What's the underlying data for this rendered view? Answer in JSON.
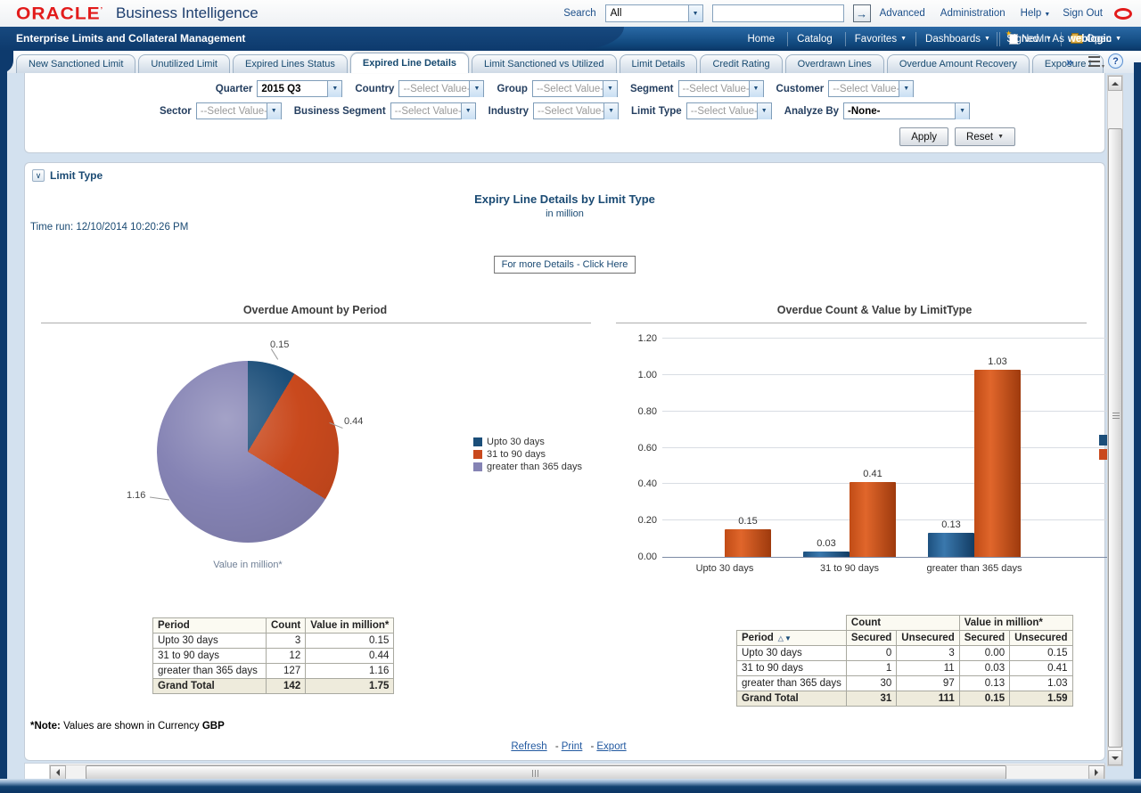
{
  "header": {
    "logo": "ORACLE",
    "logo_mark": "’",
    "product": "Business Intelligence",
    "search": {
      "label": "Search",
      "scope_value": "All",
      "input_value": ""
    },
    "links": [
      {
        "label": "Advanced"
      },
      {
        "label": "Administration"
      },
      {
        "label": "Help",
        "caret": "▼"
      },
      {
        "label": "Sign Out"
      }
    ]
  },
  "brandbar": {
    "dashboard_title": "Enterprise Limits and Collateral Management",
    "nav": [
      {
        "label": "Home"
      },
      {
        "label": "Catalog"
      },
      {
        "label": "Favorites",
        "caret": "▼"
      },
      {
        "label": "Dashboards",
        "caret": "▼"
      },
      {
        "label": "New",
        "caret": "▼",
        "icon_new": true
      },
      {
        "label": "Open",
        "caret": "▼",
        "icon_open": true
      }
    ],
    "signed_in_label": "Signed In As",
    "signed_in_user": "weblogic",
    "signed_in_caret": "▼"
  },
  "tabs": {
    "items": [
      {
        "label": "New Sanctioned Limit"
      },
      {
        "label": "Unutilized Limit"
      },
      {
        "label": "Expired Lines Status"
      },
      {
        "label": "Expired Line Details",
        "active": true
      },
      {
        "label": "Limit Sanctioned vs Utilized"
      },
      {
        "label": "Limit Details"
      },
      {
        "label": "Credit Rating"
      },
      {
        "label": "Overdrawn Lines"
      },
      {
        "label": "Overdue Amount Recovery"
      },
      {
        "label": "Exposure I"
      }
    ],
    "overflow_chevron": "»",
    "help_icon": "?"
  },
  "filters": {
    "row1": [
      {
        "label": "Quarter",
        "value": "2015 Q3"
      },
      {
        "label": "Country",
        "value": "--Select Value-",
        "muted": true
      },
      {
        "label": "Group",
        "value": "--Select Value-",
        "muted": true
      },
      {
        "label": "Segment",
        "value": "--Select Value-",
        "muted": true
      },
      {
        "label": "Customer",
        "value": "--Select Value-",
        "muted": true
      }
    ],
    "row2": [
      {
        "label": "Sector",
        "value": "--Select Value-",
        "muted": true
      },
      {
        "label": "Business Segment",
        "value": "--Select Value-",
        "muted": true
      },
      {
        "label": "Industry",
        "value": "--Select Value-",
        "muted": true
      },
      {
        "label": "Limit Type",
        "value": "--Select Value-",
        "muted": true
      },
      {
        "label": "Analyze By",
        "value": "-None-",
        "wide": true
      }
    ],
    "apply_label": "Apply",
    "reset_label": "Reset",
    "reset_caret": "▼"
  },
  "section": {
    "collapse_icon": "∨",
    "header": "Limit Type",
    "title": "Expiry Line Details by Limit Type",
    "subtitle": "in million",
    "time_run": "Time run: 12/10/2014 10:20:26 PM",
    "details_button": "For more Details - Click Here",
    "note_prefix": "*Note:",
    "note_text": " Values are shown in Currency ",
    "note_currency": "GBP",
    "footer_links": [
      {
        "label": "Refresh"
      },
      {
        "dash": "-",
        "label": "Print"
      },
      {
        "dash": "-",
        "label": "Export"
      }
    ]
  },
  "chart_data": [
    {
      "type": "pie",
      "title": "Overdue Amount by Period",
      "caption": "Value in million*",
      "labels": [
        "Upto 30 days",
        "31 to 90 days",
        "greater than 365 days"
      ],
      "values": [
        0.15,
        0.44,
        1.16
      ],
      "colors": [
        "#1b4e79",
        "#c9491d",
        "#8583b4"
      ],
      "legend_position": "right"
    },
    {
      "type": "bar",
      "title": "Overdue Count & Value by LimitType",
      "categories": [
        "Upto 30 days",
        "31 to 90 days",
        "greater than 365 days"
      ],
      "series": [
        {
          "name": "Secured",
          "color": "#1b4e79",
          "values": [
            0,
            0.03,
            0.13
          ]
        },
        {
          "name": "Unsecured",
          "color": "#c9491d",
          "values": [
            0.15,
            0.41,
            1.03
          ]
        }
      ],
      "ylim": [
        0,
        1.2
      ],
      "yticks": [
        0,
        0.2,
        0.4,
        0.6,
        0.8,
        1.0,
        1.2
      ],
      "grid": true,
      "data_labels": true
    }
  ],
  "tables": {
    "left": {
      "headers": [
        "Period",
        "Count",
        "Value in million*"
      ],
      "rows": [
        [
          "Upto 30 days",
          "3",
          "0.15"
        ],
        [
          "31 to 90 days",
          "12",
          "0.44"
        ],
        [
          "greater than 365 days",
          "127",
          "1.16"
        ]
      ],
      "total": [
        "Grand Total",
        "142",
        "1.75"
      ]
    },
    "right": {
      "group_headers": [
        "Count",
        "Value in million*"
      ],
      "period_header": "Period",
      "sort_asc": "△",
      "sort_desc": "▼",
      "sub_headers": [
        "Secured",
        "Unsecured",
        "Secured",
        "Unsecured"
      ],
      "rows": [
        [
          "Upto 30 days",
          "0",
          "3",
          "0.00",
          "0.15"
        ],
        [
          "31 to 90 days",
          "1",
          "11",
          "0.03",
          "0.41"
        ],
        [
          "greater than 365 days",
          "30",
          "97",
          "0.13",
          "1.03"
        ]
      ],
      "total": [
        "Grand Total",
        "31",
        "111",
        "0.15",
        "1.59"
      ]
    }
  },
  "icons": {
    "go_arrow": "→"
  }
}
